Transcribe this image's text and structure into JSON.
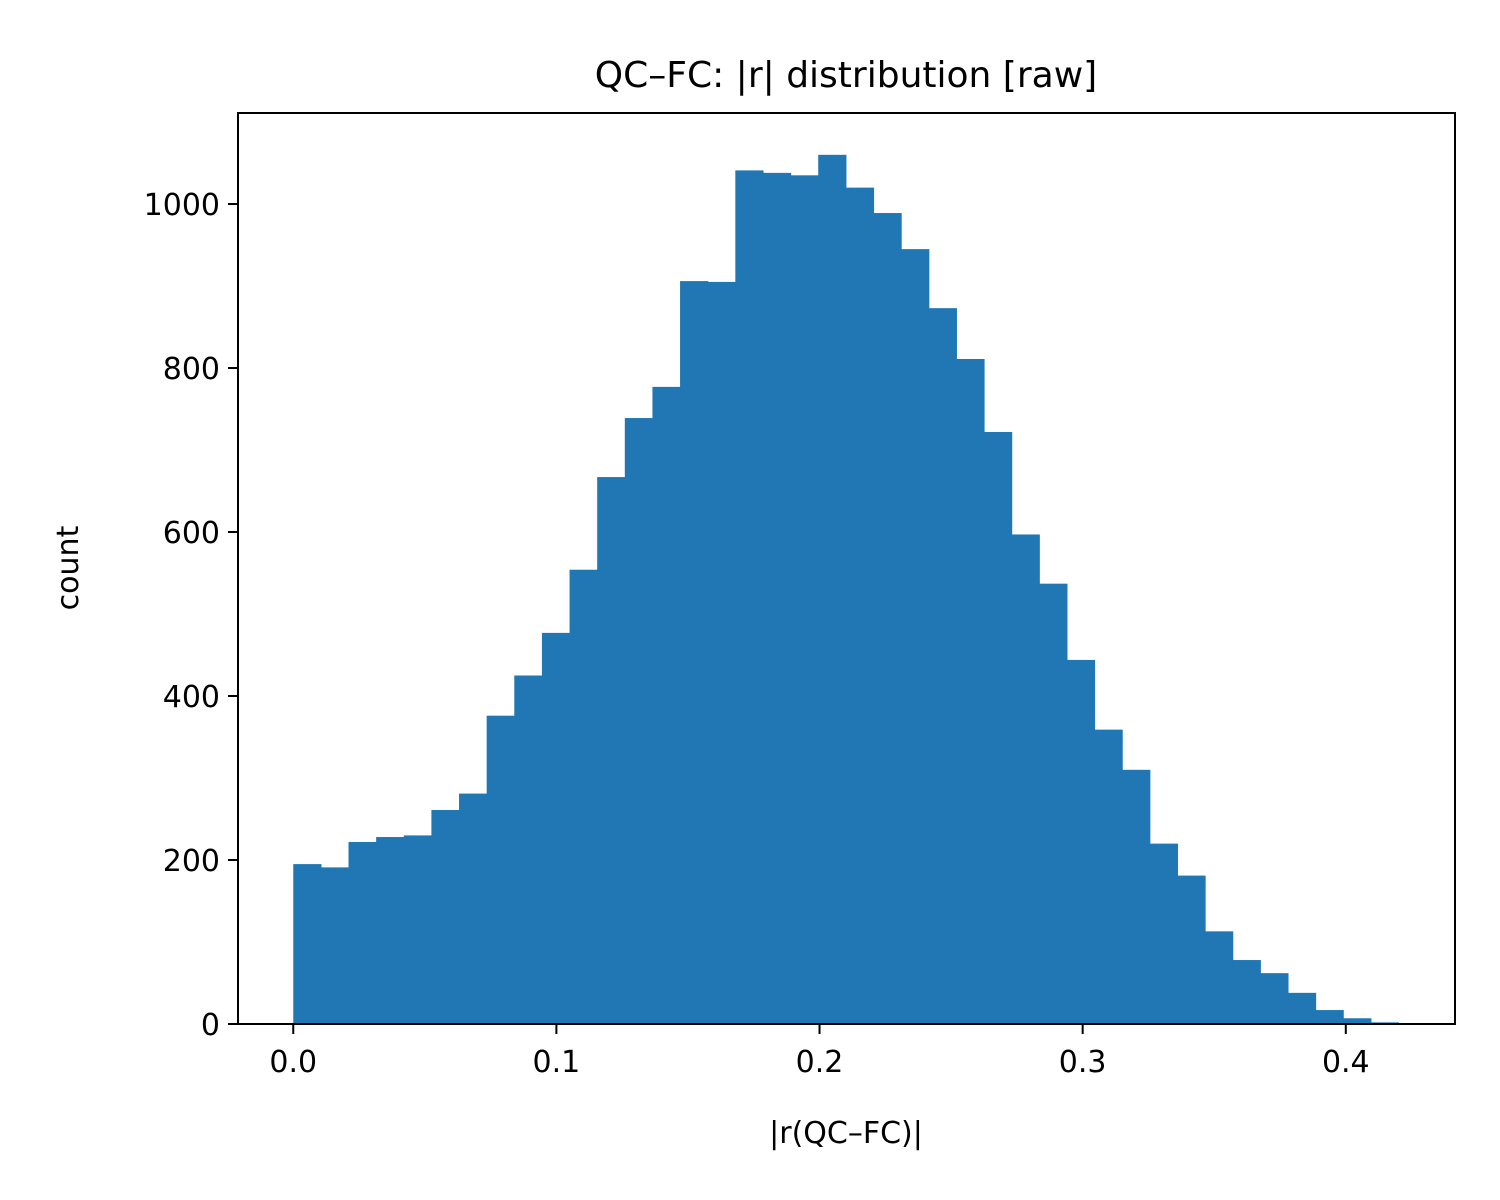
{
  "chart_data": {
    "type": "bar",
    "title": "QC–FC: |r| distribution [raw]",
    "xlabel": "|r(QC–FC)|",
    "ylabel": "count",
    "xlim": [
      -0.021,
      0.4415
    ],
    "ylim": [
      0,
      1111
    ],
    "xticks": [
      0.0,
      0.1,
      0.2,
      0.3,
      0.4
    ],
    "xtick_labels": [
      "0.0",
      "0.1",
      "0.2",
      "0.3",
      "0.4"
    ],
    "yticks": [
      0,
      200,
      400,
      600,
      800,
      1000
    ],
    "ytick_labels": [
      "0",
      "200",
      "400",
      "600",
      "800",
      "1000"
    ],
    "grid": false,
    "bar_color": "#2077b4",
    "bins": {
      "start": 0.0,
      "width": 0.0105,
      "counts": [
        195,
        191,
        222,
        228,
        230,
        261,
        281,
        376,
        425,
        477,
        554,
        667,
        739,
        777,
        906,
        905,
        1041,
        1038,
        1035,
        1060,
        1020,
        989,
        945,
        873,
        811,
        722,
        597,
        537,
        444,
        359,
        310,
        220,
        181,
        113,
        78,
        62,
        38,
        17,
        7,
        2
      ]
    }
  }
}
